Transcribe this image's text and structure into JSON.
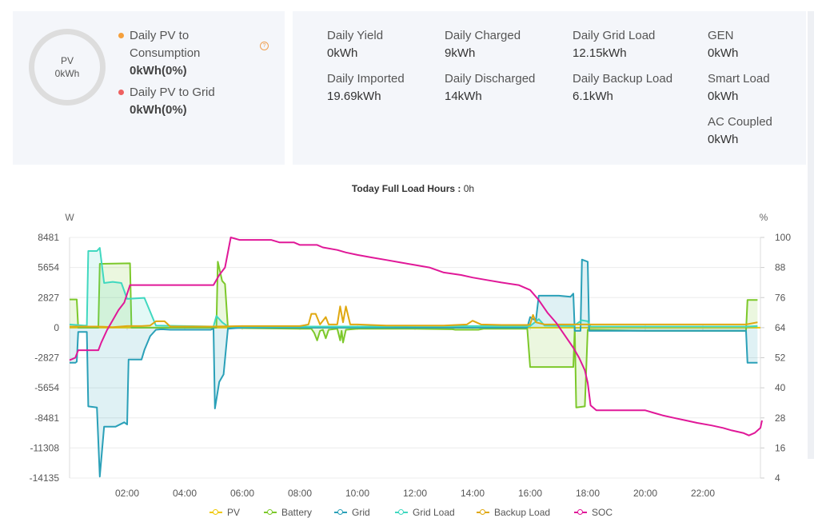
{
  "pv_card": {
    "donut_label": "PV",
    "donut_value": "0kWh",
    "items": [
      {
        "label_line1": "Daily PV to",
        "label_line2": "Consumption",
        "value": "0kWh(0%)",
        "color": "#f5a03c"
      },
      {
        "label_line1": "Daily PV to Grid",
        "label_line2": "",
        "value": "0kWh(0%)",
        "color": "#ee6060"
      }
    ],
    "help_icon": "question-circle-icon"
  },
  "stats": [
    {
      "label": "Daily Yield",
      "value": "0kWh"
    },
    {
      "label": "Daily Charged",
      "value": "9kWh"
    },
    {
      "label": "Daily Grid Load",
      "value": "12.15kWh"
    },
    {
      "label": "GEN",
      "value": "0kWh"
    },
    {
      "label": "Daily Imported",
      "value": "19.69kWh"
    },
    {
      "label": "Daily Discharged",
      "value": "14kWh"
    },
    {
      "label": "Daily Backup Load",
      "value": "6.1kWh"
    },
    {
      "label": "Smart Load",
      "value": "0kWh"
    },
    {
      "label": "AC Coupled",
      "value": "0kWh"
    }
  ],
  "chart_title": {
    "label": "Today Full Load Hours",
    "separator": " : ",
    "value": "0h"
  },
  "chart_data": {
    "type": "line",
    "title": "Today Full Load Hours : 0h",
    "xlabel": "",
    "ylabel": "W",
    "y2label": "%",
    "x_range": [
      "00:00",
      "24:00"
    ],
    "x_ticks": [
      "02:00",
      "04:00",
      "06:00",
      "08:00",
      "10:00",
      "12:00",
      "14:00",
      "16:00",
      "18:00",
      "20:00",
      "22:00"
    ],
    "y_ticks": [
      8481,
      5654,
      2827,
      0,
      -2827,
      -5654,
      -8481,
      -11308,
      -14135
    ],
    "ylim": [
      -14135,
      8481
    ],
    "y2_ticks": [
      100,
      88,
      76,
      64,
      52,
      40,
      28,
      16,
      4
    ],
    "y2lim": [
      4,
      100
    ],
    "grid": true,
    "legend_position": "bottom",
    "series": [
      {
        "name": "PV",
        "color": "#f0c800",
        "axis": "left",
        "area": false,
        "points": [
          [
            0,
            0
          ],
          [
            24,
            0
          ]
        ]
      },
      {
        "name": "Battery",
        "color": "#7cc82a",
        "axis": "left",
        "area": true,
        "points": [
          [
            0,
            2650
          ],
          [
            0.25,
            2650
          ],
          [
            0.3,
            0
          ],
          [
            1,
            0
          ],
          [
            1.05,
            6000
          ],
          [
            2.1,
            6050
          ],
          [
            2.15,
            0
          ],
          [
            5.1,
            0
          ],
          [
            5.15,
            6200
          ],
          [
            5.3,
            4400
          ],
          [
            5.4,
            4100
          ],
          [
            5.5,
            0
          ],
          [
            6.0,
            -50
          ],
          [
            8.0,
            -100
          ],
          [
            8.4,
            -100
          ],
          [
            8.5,
            -500
          ],
          [
            8.6,
            -1200
          ],
          [
            8.7,
            -300
          ],
          [
            8.8,
            -200
          ],
          [
            8.9,
            -1000
          ],
          [
            9.0,
            -200
          ],
          [
            9.3,
            -100
          ],
          [
            9.4,
            -1200
          ],
          [
            9.45,
            -300
          ],
          [
            9.5,
            -1400
          ],
          [
            9.6,
            -200
          ],
          [
            10,
            -100
          ],
          [
            12,
            -100
          ],
          [
            13.3,
            -150
          ],
          [
            13.4,
            -200
          ],
          [
            14.2,
            -200
          ],
          [
            14.4,
            -100
          ],
          [
            15.9,
            -100
          ],
          [
            16.0,
            -3700
          ],
          [
            17.5,
            -3700
          ],
          [
            17.55,
            0
          ],
          [
            17.6,
            -7500
          ],
          [
            17.9,
            -7400
          ],
          [
            18.0,
            -200
          ],
          [
            20,
            -300
          ],
          [
            23.3,
            -300
          ],
          [
            23.5,
            -300
          ],
          [
            23.55,
            2600
          ],
          [
            23.9,
            2600
          ]
        ]
      },
      {
        "name": "Grid",
        "color": "#2aa0b8",
        "axis": "left",
        "area": true,
        "points": [
          [
            0,
            -3300
          ],
          [
            0.2,
            -3300
          ],
          [
            0.25,
            -3200
          ],
          [
            0.3,
            -400
          ],
          [
            0.6,
            -400
          ],
          [
            0.65,
            -7400
          ],
          [
            0.95,
            -7500
          ],
          [
            1.05,
            -14000
          ],
          [
            1.2,
            -9300
          ],
          [
            1.6,
            -9300
          ],
          [
            1.9,
            -8900
          ],
          [
            2.0,
            -9100
          ],
          [
            2.05,
            -3000
          ],
          [
            2.5,
            -3000
          ],
          [
            2.6,
            -2100
          ],
          [
            2.8,
            -800
          ],
          [
            3.0,
            -200
          ],
          [
            3.2,
            -150
          ],
          [
            3.5,
            -200
          ],
          [
            4.0,
            -200
          ],
          [
            4.9,
            -200
          ],
          [
            5.0,
            -100
          ],
          [
            5.05,
            -7600
          ],
          [
            5.2,
            -5100
          ],
          [
            5.35,
            -4400
          ],
          [
            5.5,
            -100
          ],
          [
            6,
            0
          ],
          [
            8,
            0
          ],
          [
            9,
            0
          ],
          [
            10,
            0
          ],
          [
            12,
            0
          ],
          [
            14,
            0
          ],
          [
            15.9,
            0
          ],
          [
            16.0,
            1000
          ],
          [
            16.1,
            800
          ],
          [
            16.2,
            700
          ],
          [
            16.3,
            3000
          ],
          [
            17.0,
            3000
          ],
          [
            17.4,
            2900
          ],
          [
            17.5,
            3200
          ],
          [
            17.55,
            -300
          ],
          [
            17.75,
            -300
          ],
          [
            17.8,
            6400
          ],
          [
            18.0,
            6200
          ],
          [
            18.05,
            -300
          ],
          [
            18.5,
            -300
          ],
          [
            20,
            -300
          ],
          [
            22,
            -300
          ],
          [
            23.5,
            -300
          ],
          [
            23.55,
            -3300
          ],
          [
            23.9,
            -3300
          ]
        ]
      },
      {
        "name": "Grid Load",
        "color": "#40d8c0",
        "axis": "left",
        "area": true,
        "points": [
          [
            0,
            300
          ],
          [
            0.5,
            200
          ],
          [
            0.6,
            200
          ],
          [
            0.65,
            7200
          ],
          [
            0.95,
            7200
          ],
          [
            1.05,
            7500
          ],
          [
            1.2,
            4200
          ],
          [
            1.5,
            4300
          ],
          [
            1.8,
            4200
          ],
          [
            2.0,
            2700
          ],
          [
            2.6,
            2800
          ],
          [
            2.8,
            1500
          ],
          [
            3.0,
            200
          ],
          [
            4,
            150
          ],
          [
            5.0,
            100
          ],
          [
            5.1,
            1100
          ],
          [
            5.3,
            500
          ],
          [
            5.5,
            100
          ],
          [
            6,
            100
          ],
          [
            8,
            100
          ],
          [
            10,
            100
          ],
          [
            12,
            150
          ],
          [
            14,
            150
          ],
          [
            16,
            150
          ],
          [
            16.3,
            800
          ],
          [
            16.5,
            200
          ],
          [
            17.5,
            150
          ],
          [
            17.8,
            700
          ],
          [
            18.0,
            600
          ],
          [
            18.1,
            100
          ],
          [
            20,
            100
          ],
          [
            23.5,
            100
          ],
          [
            23.9,
            150
          ]
        ]
      },
      {
        "name": "Backup Load",
        "color": "#e0a810",
        "axis": "left",
        "area": false,
        "points": [
          [
            0,
            100
          ],
          [
            0.5,
            100
          ],
          [
            1,
            100
          ],
          [
            1.5,
            50
          ],
          [
            2,
            150
          ],
          [
            2.5,
            150
          ],
          [
            2.8,
            200
          ],
          [
            3.0,
            600
          ],
          [
            3.3,
            600
          ],
          [
            3.5,
            100
          ],
          [
            4,
            100
          ],
          [
            5,
            100
          ],
          [
            6,
            150
          ],
          [
            7,
            150
          ],
          [
            8,
            150
          ],
          [
            8.3,
            300
          ],
          [
            8.4,
            1300
          ],
          [
            8.55,
            1300
          ],
          [
            8.7,
            300
          ],
          [
            8.9,
            1000
          ],
          [
            9.0,
            300
          ],
          [
            9.3,
            300
          ],
          [
            9.4,
            2000
          ],
          [
            9.5,
            500
          ],
          [
            9.6,
            2000
          ],
          [
            9.75,
            300
          ],
          [
            10,
            300
          ],
          [
            11,
            200
          ],
          [
            12,
            200
          ],
          [
            13,
            200
          ],
          [
            13.8,
            300
          ],
          [
            14.0,
            650
          ],
          [
            14.3,
            300
          ],
          [
            15,
            250
          ],
          [
            15.9,
            250
          ],
          [
            16.0,
            300
          ],
          [
            16.1,
            1200
          ],
          [
            16.2,
            500
          ],
          [
            16.5,
            300
          ],
          [
            17,
            300
          ],
          [
            18,
            300
          ],
          [
            20,
            300
          ],
          [
            22,
            300
          ],
          [
            23.5,
            300
          ],
          [
            23.9,
            500
          ]
        ]
      },
      {
        "name": "SOC",
        "color": "#e01898",
        "axis": "right",
        "area": false,
        "points": [
          [
            0,
            51
          ],
          [
            0.2,
            52
          ],
          [
            0.3,
            55
          ],
          [
            1.0,
            55
          ],
          [
            1.1,
            58
          ],
          [
            1.3,
            63
          ],
          [
            1.5,
            67
          ],
          [
            1.7,
            71
          ],
          [
            1.9,
            74
          ],
          [
            2.1,
            81
          ],
          [
            2.2,
            81
          ],
          [
            5.0,
            81
          ],
          [
            5.2,
            85
          ],
          [
            5.4,
            88
          ],
          [
            5.6,
            100
          ],
          [
            5.9,
            99
          ],
          [
            7.0,
            99
          ],
          [
            7.3,
            98
          ],
          [
            7.8,
            98
          ],
          [
            8.0,
            97
          ],
          [
            8.6,
            97
          ],
          [
            8.8,
            96
          ],
          [
            9.3,
            95
          ],
          [
            9.6,
            94
          ],
          [
            10.0,
            93
          ],
          [
            10.5,
            92
          ],
          [
            11.0,
            91
          ],
          [
            11.5,
            90
          ],
          [
            12.0,
            89
          ],
          [
            12.5,
            88
          ],
          [
            13.0,
            86
          ],
          [
            13.6,
            85
          ],
          [
            14.0,
            84
          ],
          [
            14.5,
            83
          ],
          [
            15.0,
            82
          ],
          [
            15.6,
            81
          ],
          [
            16.0,
            79
          ],
          [
            16.3,
            75
          ],
          [
            16.6,
            70
          ],
          [
            16.9,
            66
          ],
          [
            17.2,
            61
          ],
          [
            17.5,
            56
          ],
          [
            17.7,
            52
          ],
          [
            17.9,
            47
          ],
          [
            18.0,
            42
          ],
          [
            18.1,
            33
          ],
          [
            18.3,
            31
          ],
          [
            20.0,
            31
          ],
          [
            20.3,
            30
          ],
          [
            20.6,
            29
          ],
          [
            21.0,
            28
          ],
          [
            21.4,
            27
          ],
          [
            21.8,
            26
          ],
          [
            22.3,
            25
          ],
          [
            22.7,
            24
          ],
          [
            23.0,
            23
          ],
          [
            23.4,
            22
          ],
          [
            23.6,
            21
          ],
          [
            23.8,
            22
          ],
          [
            24.0,
            24
          ],
          [
            24.1,
            27
          ]
        ]
      }
    ]
  }
}
